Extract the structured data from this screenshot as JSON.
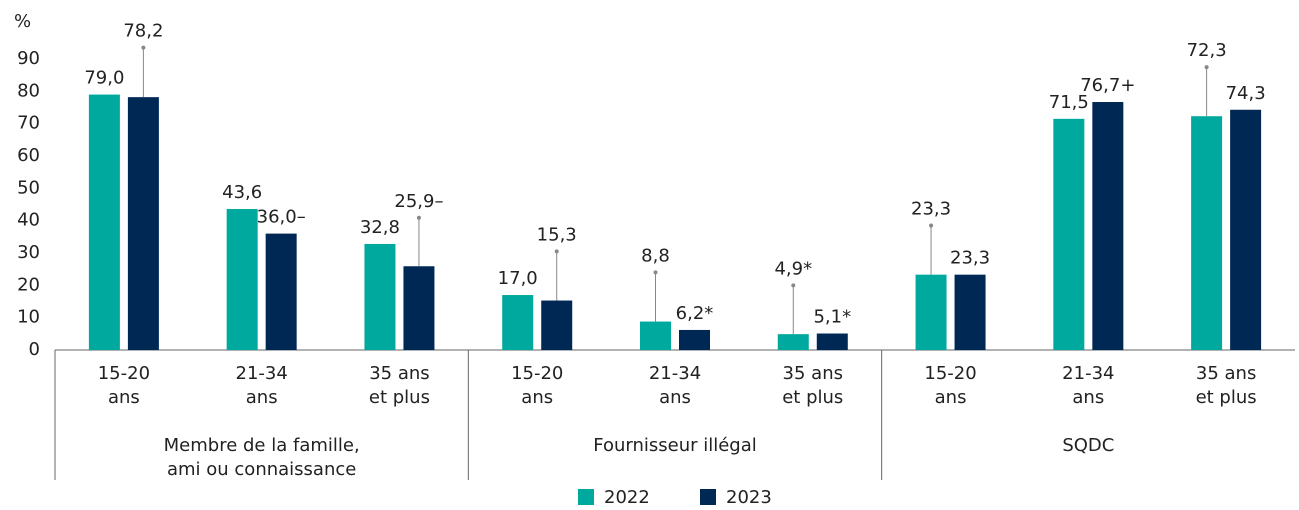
{
  "chart_data": {
    "type": "bar",
    "y_label": "%",
    "groups": [
      [
        "Membre de la famille,",
        "ami ou connaissance"
      ],
      [
        "Fournisseur illégal"
      ],
      [
        "SQDC"
      ]
    ],
    "categories": [
      [
        "15-20",
        "ans"
      ],
      [
        "21-34",
        "ans"
      ],
      [
        "35 ans",
        "et plus"
      ],
      [
        "15-20",
        "ans"
      ],
      [
        "21-34",
        "ans"
      ],
      [
        "35 ans",
        "et plus"
      ],
      [
        "15-20",
        "ans"
      ],
      [
        "21-34",
        "ans"
      ],
      [
        "35 ans",
        "et plus"
      ]
    ],
    "series": [
      {
        "name": "2022",
        "color": "#00a99d",
        "values": [
          79.0,
          43.6,
          32.8,
          17.0,
          8.8,
          4.9,
          23.3,
          71.5,
          72.3
        ],
        "value_labels": [
          "79,0",
          "43,6",
          "32,8",
          "17,0",
          "8,8",
          "4,9*",
          "23,3",
          "71,5",
          "72,3"
        ],
        "errors": [
          null,
          null,
          null,
          null,
          15.2,
          15.1,
          15.2,
          null,
          15.2
        ]
      },
      {
        "name": "2023",
        "color": "#002855",
        "values": [
          78.2,
          36.0,
          25.9,
          15.3,
          6.2,
          5.1,
          23.3,
          76.7,
          74.3
        ],
        "value_labels": [
          "78,2",
          "36,0–",
          "25,9–",
          "15,3",
          "6,2*",
          "5,1*",
          "23,3",
          "76,7+",
          "74,3"
        ],
        "errors": [
          15.3,
          null,
          15.0,
          15.2,
          null,
          null,
          null,
          null,
          null
        ]
      }
    ],
    "ylim": [
      0,
      90
    ],
    "yticks": [
      0,
      10,
      20,
      30,
      40,
      50,
      60,
      70,
      80,
      90
    ],
    "grid": false,
    "legend": "bottom"
  }
}
